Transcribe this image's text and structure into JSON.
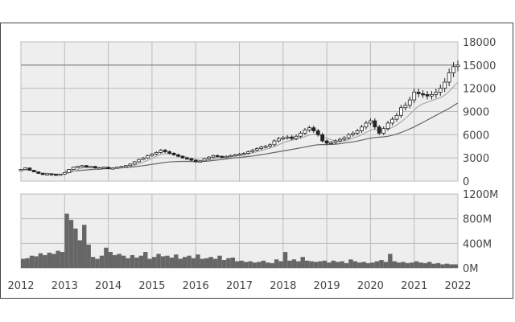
{
  "chart_data": [
    {
      "type": "candlestick",
      "title": "",
      "xlabel": "",
      "ylabel": "",
      "ylim": [
        0,
        18000
      ],
      "y_ticks": [
        0,
        3000,
        6000,
        9000,
        12000,
        15000,
        18000
      ],
      "y_tick_labels": [
        "0",
        "3000",
        "6000",
        "9000",
        "12000",
        "15000",
        "18000"
      ],
      "reference_line": 15000,
      "grid": true,
      "price_series": {
        "x": [
          2012.0,
          2012.1,
          2012.2,
          2012.3,
          2012.4,
          2012.5,
          2012.6,
          2012.7,
          2012.8,
          2012.9,
          2013.0,
          2013.1,
          2013.2,
          2013.3,
          2013.4,
          2013.5,
          2013.6,
          2013.7,
          2013.8,
          2013.9,
          2014.0,
          2014.1,
          2014.2,
          2014.3,
          2014.4,
          2014.5,
          2014.6,
          2014.7,
          2014.8,
          2014.9,
          2015.0,
          2015.1,
          2015.2,
          2015.3,
          2015.4,
          2015.5,
          2015.6,
          2015.7,
          2015.8,
          2015.9,
          2016.0,
          2016.1,
          2016.2,
          2016.3,
          2016.4,
          2016.5,
          2016.6,
          2016.7,
          2016.8,
          2016.9,
          2017.0,
          2017.1,
          2017.2,
          2017.3,
          2017.4,
          2017.5,
          2017.6,
          2017.7,
          2017.8,
          2017.9,
          2018.0,
          2018.1,
          2018.2,
          2018.3,
          2018.4,
          2018.5,
          2018.6,
          2018.7,
          2018.8,
          2018.9,
          2019.0,
          2019.1,
          2019.2,
          2019.3,
          2019.4,
          2019.5,
          2019.6,
          2019.7,
          2019.8,
          2019.9,
          2020.0,
          2020.1,
          2020.2,
          2020.3,
          2020.4,
          2020.5,
          2020.6,
          2020.7,
          2020.8,
          2020.9,
          2021.0,
          2021.1,
          2021.2,
          2021.3,
          2021.4,
          2021.5,
          2021.6,
          2021.7,
          2021.8,
          2021.9,
          2022.0
        ],
        "y": [
          1500,
          1700,
          1400,
          1200,
          1000,
          900,
          950,
          900,
          850,
          900,
          1100,
          1500,
          1800,
          1900,
          2000,
          1800,
          1900,
          1700,
          1700,
          1800,
          1600,
          1700,
          1800,
          1900,
          2000,
          2200,
          2500,
          2800,
          3000,
          3300,
          3500,
          3700,
          4000,
          3800,
          3600,
          3400,
          3200,
          3000,
          2900,
          2700,
          2500,
          2600,
          2900,
          3100,
          3300,
          3200,
          3100,
          3200,
          3300,
          3400,
          3500,
          3600,
          3800,
          4000,
          4200,
          4400,
          4500,
          4700,
          5200,
          5500,
          5600,
          5700,
          5500,
          5800,
          6200,
          6600,
          6900,
          6500,
          6000,
          5200,
          4900,
          5000,
          5200,
          5400,
          5600,
          6000,
          6200,
          6500,
          7000,
          7500,
          7800,
          7000,
          6200,
          6800,
          7500,
          8000,
          8500,
          9500,
          9800,
          10500,
          11500,
          11300,
          11200,
          11000,
          11200,
          11500,
          12000,
          12800,
          14000,
          14800,
          15000
        ],
        "ma_short": [
          1400,
          1450,
          1400,
          1300,
          1150,
          1050,
          1000,
          950,
          920,
          900,
          950,
          1050,
          1250,
          1500,
          1700,
          1800,
          1820,
          1800,
          1780,
          1760,
          1720,
          1700,
          1700,
          1720,
          1800,
          1900,
          2050,
          2250,
          2450,
          2700,
          2950,
          3200,
          3450,
          3550,
          3550,
          3500,
          3400,
          3250,
          3100,
          2950,
          2800,
          2700,
          2700,
          2750,
          2850,
          2950,
          3050,
          3120,
          3180,
          3250,
          3330,
          3420,
          3520,
          3650,
          3800,
          3950,
          4100,
          4250,
          4450,
          4700,
          4950,
          5150,
          5300,
          5400,
          5550,
          5750,
          5950,
          6050,
          6000,
          5800,
          5550,
          5350,
          5200,
          5150,
          5200,
          5350,
          5550,
          5750,
          6000,
          6300,
          6600,
          6700,
          6600,
          6550,
          6700,
          6950,
          7250,
          7650,
          8100,
          8650,
          9200,
          9700,
          10000,
          10200,
          10400,
          10600,
          10800,
          11100,
          11600,
          12200,
          12800
        ],
        "ma_long": [
          null,
          null,
          null,
          null,
          null,
          null,
          null,
          null,
          null,
          null,
          1300,
          1300,
          1320,
          1350,
          1400,
          1450,
          1500,
          1530,
          1560,
          1590,
          1620,
          1650,
          1680,
          1720,
          1760,
          1800,
          1860,
          1930,
          2000,
          2080,
          2160,
          2250,
          2340,
          2420,
          2480,
          2520,
          2540,
          2550,
          2550,
          2540,
          2530,
          2540,
          2560,
          2600,
          2660,
          2730,
          2800,
          2870,
          2940,
          3000,
          3060,
          3120,
          3180,
          3250,
          3330,
          3420,
          3510,
          3600,
          3700,
          3800,
          3900,
          4000,
          4100,
          4200,
          4300,
          4400,
          4520,
          4630,
          4700,
          4720,
          4720,
          4740,
          4780,
          4840,
          4920,
          5000,
          5080,
          5180,
          5300,
          5430,
          5560,
          5640,
          5680,
          5720,
          5800,
          5920,
          6080,
          6280,
          6500,
          6750,
          7000,
          7300,
          7600,
          7900,
          8200,
          8500,
          8800,
          9100,
          9400,
          9750,
          10100
        ]
      }
    },
    {
      "type": "bar",
      "title": "",
      "xlabel": "",
      "ylabel": "",
      "ylim": [
        0,
        1200
      ],
      "y_ticks": [
        0,
        400,
        800,
        1200
      ],
      "y_tick_labels": [
        "0M",
        "400M",
        "800M",
        "1200M"
      ],
      "x_ticks": [
        2012,
        2013,
        2014,
        2015,
        2016,
        2017,
        2018,
        2019,
        2020,
        2021,
        2022
      ],
      "x_tick_labels": [
        "2012",
        "2013",
        "2014",
        "2015",
        "2016",
        "2017",
        "2018",
        "2019",
        "2020",
        "2021",
        "2022"
      ],
      "grid": true,
      "x": [
        2012.0,
        2012.1,
        2012.2,
        2012.3,
        2012.4,
        2012.5,
        2012.6,
        2012.7,
        2012.8,
        2012.9,
        2013.0,
        2013.1,
        2013.2,
        2013.3,
        2013.4,
        2013.5,
        2013.6,
        2013.7,
        2013.8,
        2013.9,
        2014.0,
        2014.1,
        2014.2,
        2014.3,
        2014.4,
        2014.5,
        2014.6,
        2014.7,
        2014.8,
        2014.9,
        2015.0,
        2015.1,
        2015.2,
        2015.3,
        2015.4,
        2015.5,
        2015.6,
        2015.7,
        2015.8,
        2015.9,
        2016.0,
        2016.1,
        2016.2,
        2016.3,
        2016.4,
        2016.5,
        2016.6,
        2016.7,
        2016.8,
        2016.9,
        2017.0,
        2017.1,
        2017.2,
        2017.3,
        2017.4,
        2017.5,
        2017.6,
        2017.7,
        2017.8,
        2017.9,
        2018.0,
        2018.1,
        2018.2,
        2018.3,
        2018.4,
        2018.5,
        2018.6,
        2018.7,
        2018.8,
        2018.9,
        2019.0,
        2019.1,
        2019.2,
        2019.3,
        2019.4,
        2019.5,
        2019.6,
        2019.7,
        2019.8,
        2019.9,
        2020.0,
        2020.1,
        2020.2,
        2020.3,
        2020.4,
        2020.5,
        2020.6,
        2020.7,
        2020.8,
        2020.9,
        2021.0,
        2021.1,
        2021.2,
        2021.3,
        2021.4,
        2021.5,
        2021.6,
        2021.7,
        2021.8,
        2021.9
      ],
      "values": [
        150,
        160,
        200,
        190,
        240,
        210,
        250,
        230,
        280,
        260,
        880,
        780,
        640,
        450,
        700,
        380,
        180,
        150,
        200,
        330,
        260,
        210,
        230,
        200,
        160,
        210,
        170,
        200,
        260,
        150,
        180,
        230,
        190,
        200,
        170,
        220,
        150,
        180,
        200,
        160,
        220,
        150,
        160,
        180,
        150,
        200,
        130,
        160,
        170,
        110,
        120,
        100,
        110,
        90,
        100,
        120,
        90,
        80,
        140,
        110,
        260,
        120,
        140,
        110,
        180,
        120,
        110,
        100,
        110,
        120,
        90,
        120,
        100,
        110,
        80,
        140,
        110,
        90,
        100,
        80,
        90,
        110,
        130,
        100,
        230,
        110,
        90,
        100,
        80,
        90,
        110,
        90,
        80,
        100,
        70,
        80,
        60,
        70,
        60,
        60
      ]
    }
  ]
}
